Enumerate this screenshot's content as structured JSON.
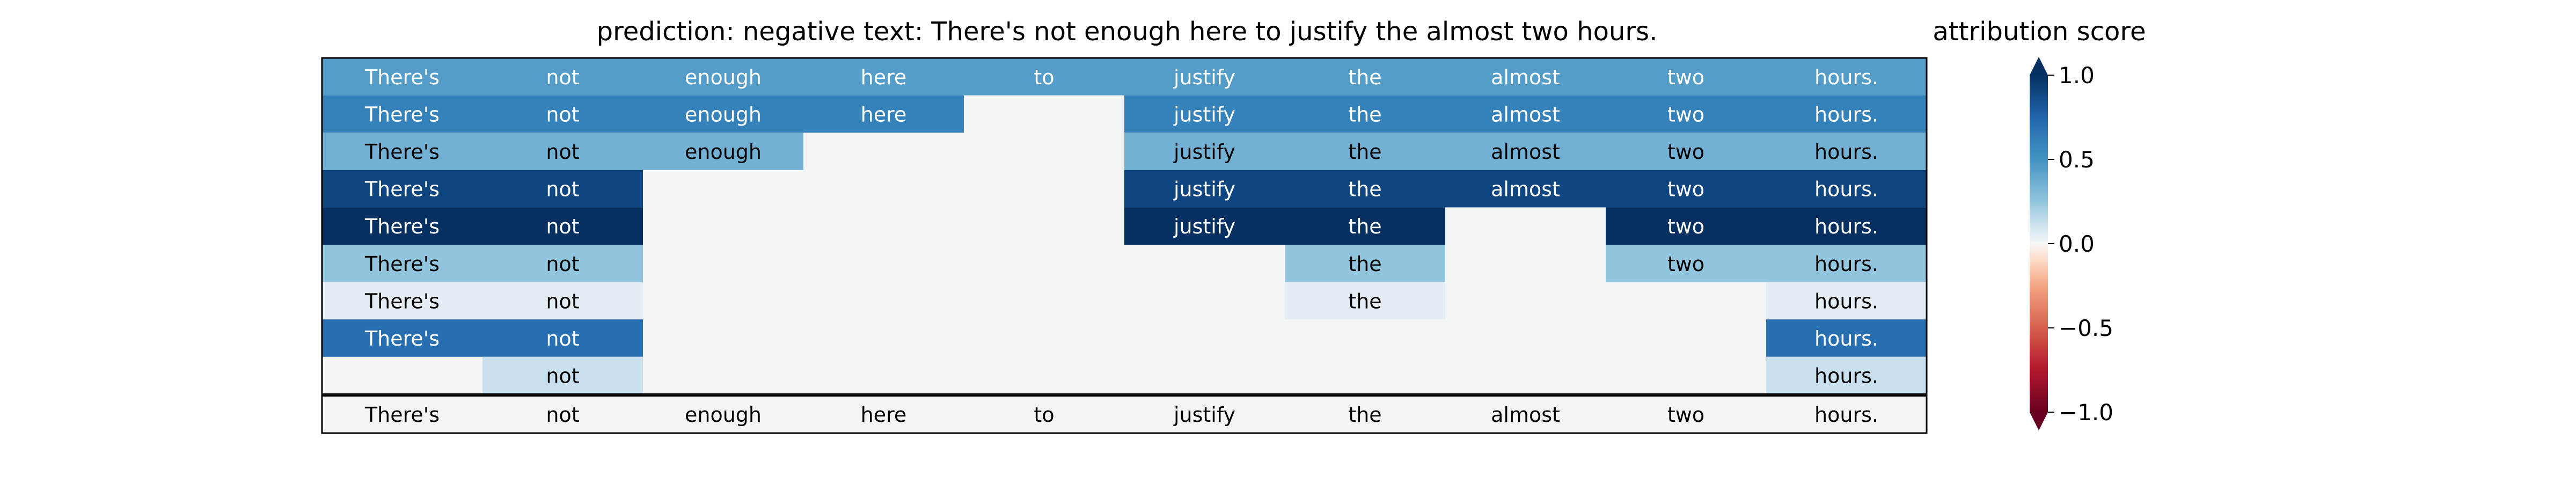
{
  "title": "prediction:  negative     text:  There's not enough here to justify the almost two hours.",
  "colorbar": {
    "label": "attribution score",
    "ticks": [
      1.0,
      0.5,
      0.0,
      -0.5,
      -1.0
    ],
    "tick_labels": [
      "1.0",
      "0.5",
      "0.0",
      "−0.5",
      "−1.0"
    ]
  },
  "chart_data": {
    "type": "heatmap",
    "title": "prediction:  negative     text:  There's not enough here to justify the almost two hours.",
    "tokens": [
      "There's",
      "not",
      "enough",
      "here",
      "to",
      "justify",
      "the",
      "almost",
      "two",
      "hours."
    ],
    "vmin": -1.0,
    "vmax": 1.0,
    "colormap": "RdBu",
    "rows": [
      [
        0.45,
        0.45,
        0.45,
        0.45,
        0.45,
        0.45,
        0.45,
        0.45,
        0.45,
        0.45
      ],
      [
        0.6,
        0.6,
        0.6,
        0.6,
        null,
        0.6,
        0.6,
        0.6,
        0.6,
        0.6
      ],
      [
        0.35,
        0.35,
        0.35,
        null,
        null,
        0.35,
        0.35,
        0.35,
        0.35,
        0.35
      ],
      [
        0.9,
        0.9,
        null,
        null,
        null,
        0.9,
        0.9,
        0.9,
        0.9,
        0.9
      ],
      [
        1.0,
        1.0,
        null,
        null,
        null,
        1.0,
        1.0,
        null,
        1.0,
        1.0
      ],
      [
        0.25,
        0.25,
        null,
        null,
        null,
        null,
        0.25,
        null,
        0.25,
        0.25
      ],
      [
        0.05,
        0.05,
        null,
        null,
        null,
        null,
        0.05,
        null,
        null,
        0.05
      ],
      [
        0.7,
        0.7,
        null,
        null,
        null,
        null,
        null,
        null,
        null,
        0.7
      ],
      [
        null,
        0.12,
        null,
        null,
        null,
        null,
        null,
        null,
        null,
        0.12
      ]
    ],
    "footer_row": [
      "There's",
      "not",
      "enough",
      "here",
      "to",
      "justify",
      "the",
      "almost",
      "two",
      "hours."
    ]
  }
}
